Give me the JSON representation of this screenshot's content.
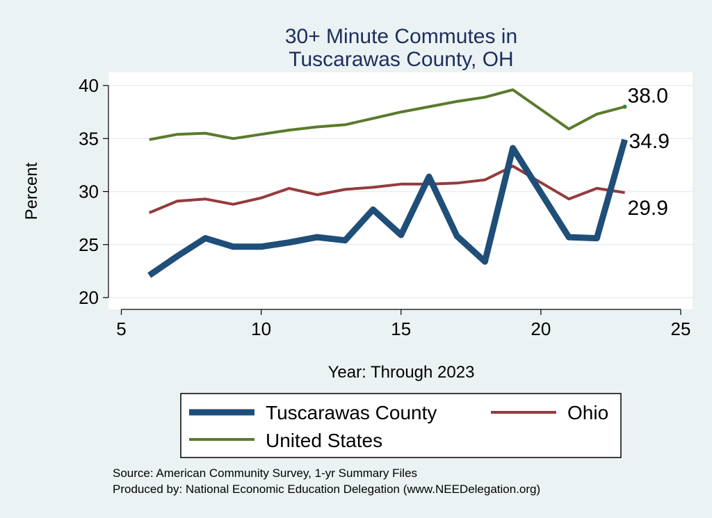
{
  "chart_data": {
    "type": "line",
    "title_lines": [
      "30+ Minute Commutes in",
      "Tuscarawas County, OH"
    ],
    "xlabel": "Year: Through 2023",
    "ylabel": "Percent",
    "xlim": [
      5,
      25
    ],
    "ylim": [
      20,
      40
    ],
    "xticks": [
      5,
      10,
      15,
      20,
      25
    ],
    "yticks": [
      20,
      25,
      30,
      35,
      40
    ],
    "grid": true,
    "legend_position": "bottom",
    "x": [
      6,
      7,
      8,
      9,
      10,
      11,
      12,
      13,
      14,
      15,
      16,
      17,
      18,
      19,
      21,
      22,
      23
    ],
    "series": [
      {
        "name": "Tuscarawas County",
        "color": "#1f4e79",
        "values": [
          22.1,
          23.9,
          25.6,
          24.8,
          24.8,
          25.2,
          25.7,
          25.4,
          28.3,
          25.9,
          31.4,
          25.8,
          23.4,
          34.1,
          25.7,
          25.6,
          34.9
        ],
        "end_label": "34.9"
      },
      {
        "name": "Ohio",
        "color": "#943b3d",
        "values": [
          28.0,
          29.1,
          29.3,
          28.8,
          29.4,
          30.3,
          29.7,
          30.2,
          30.4,
          30.7,
          30.7,
          30.8,
          31.1,
          32.4,
          29.3,
          30.3,
          29.9
        ],
        "end_label": "29.9"
      },
      {
        "name": "United States",
        "color": "#5a7a2c",
        "values": [
          34.9,
          35.4,
          35.5,
          35.0,
          35.4,
          35.8,
          36.1,
          36.3,
          36.9,
          37.5,
          38.0,
          38.5,
          38.9,
          39.6,
          35.9,
          37.3,
          38.0
        ],
        "end_label": "38.0"
      }
    ]
  },
  "source_lines": [
    "Source: American Community Survey, 1-yr Summary Files",
    "Produced by: National Economic Education Delegation (www.NEEDelegation.org)"
  ]
}
